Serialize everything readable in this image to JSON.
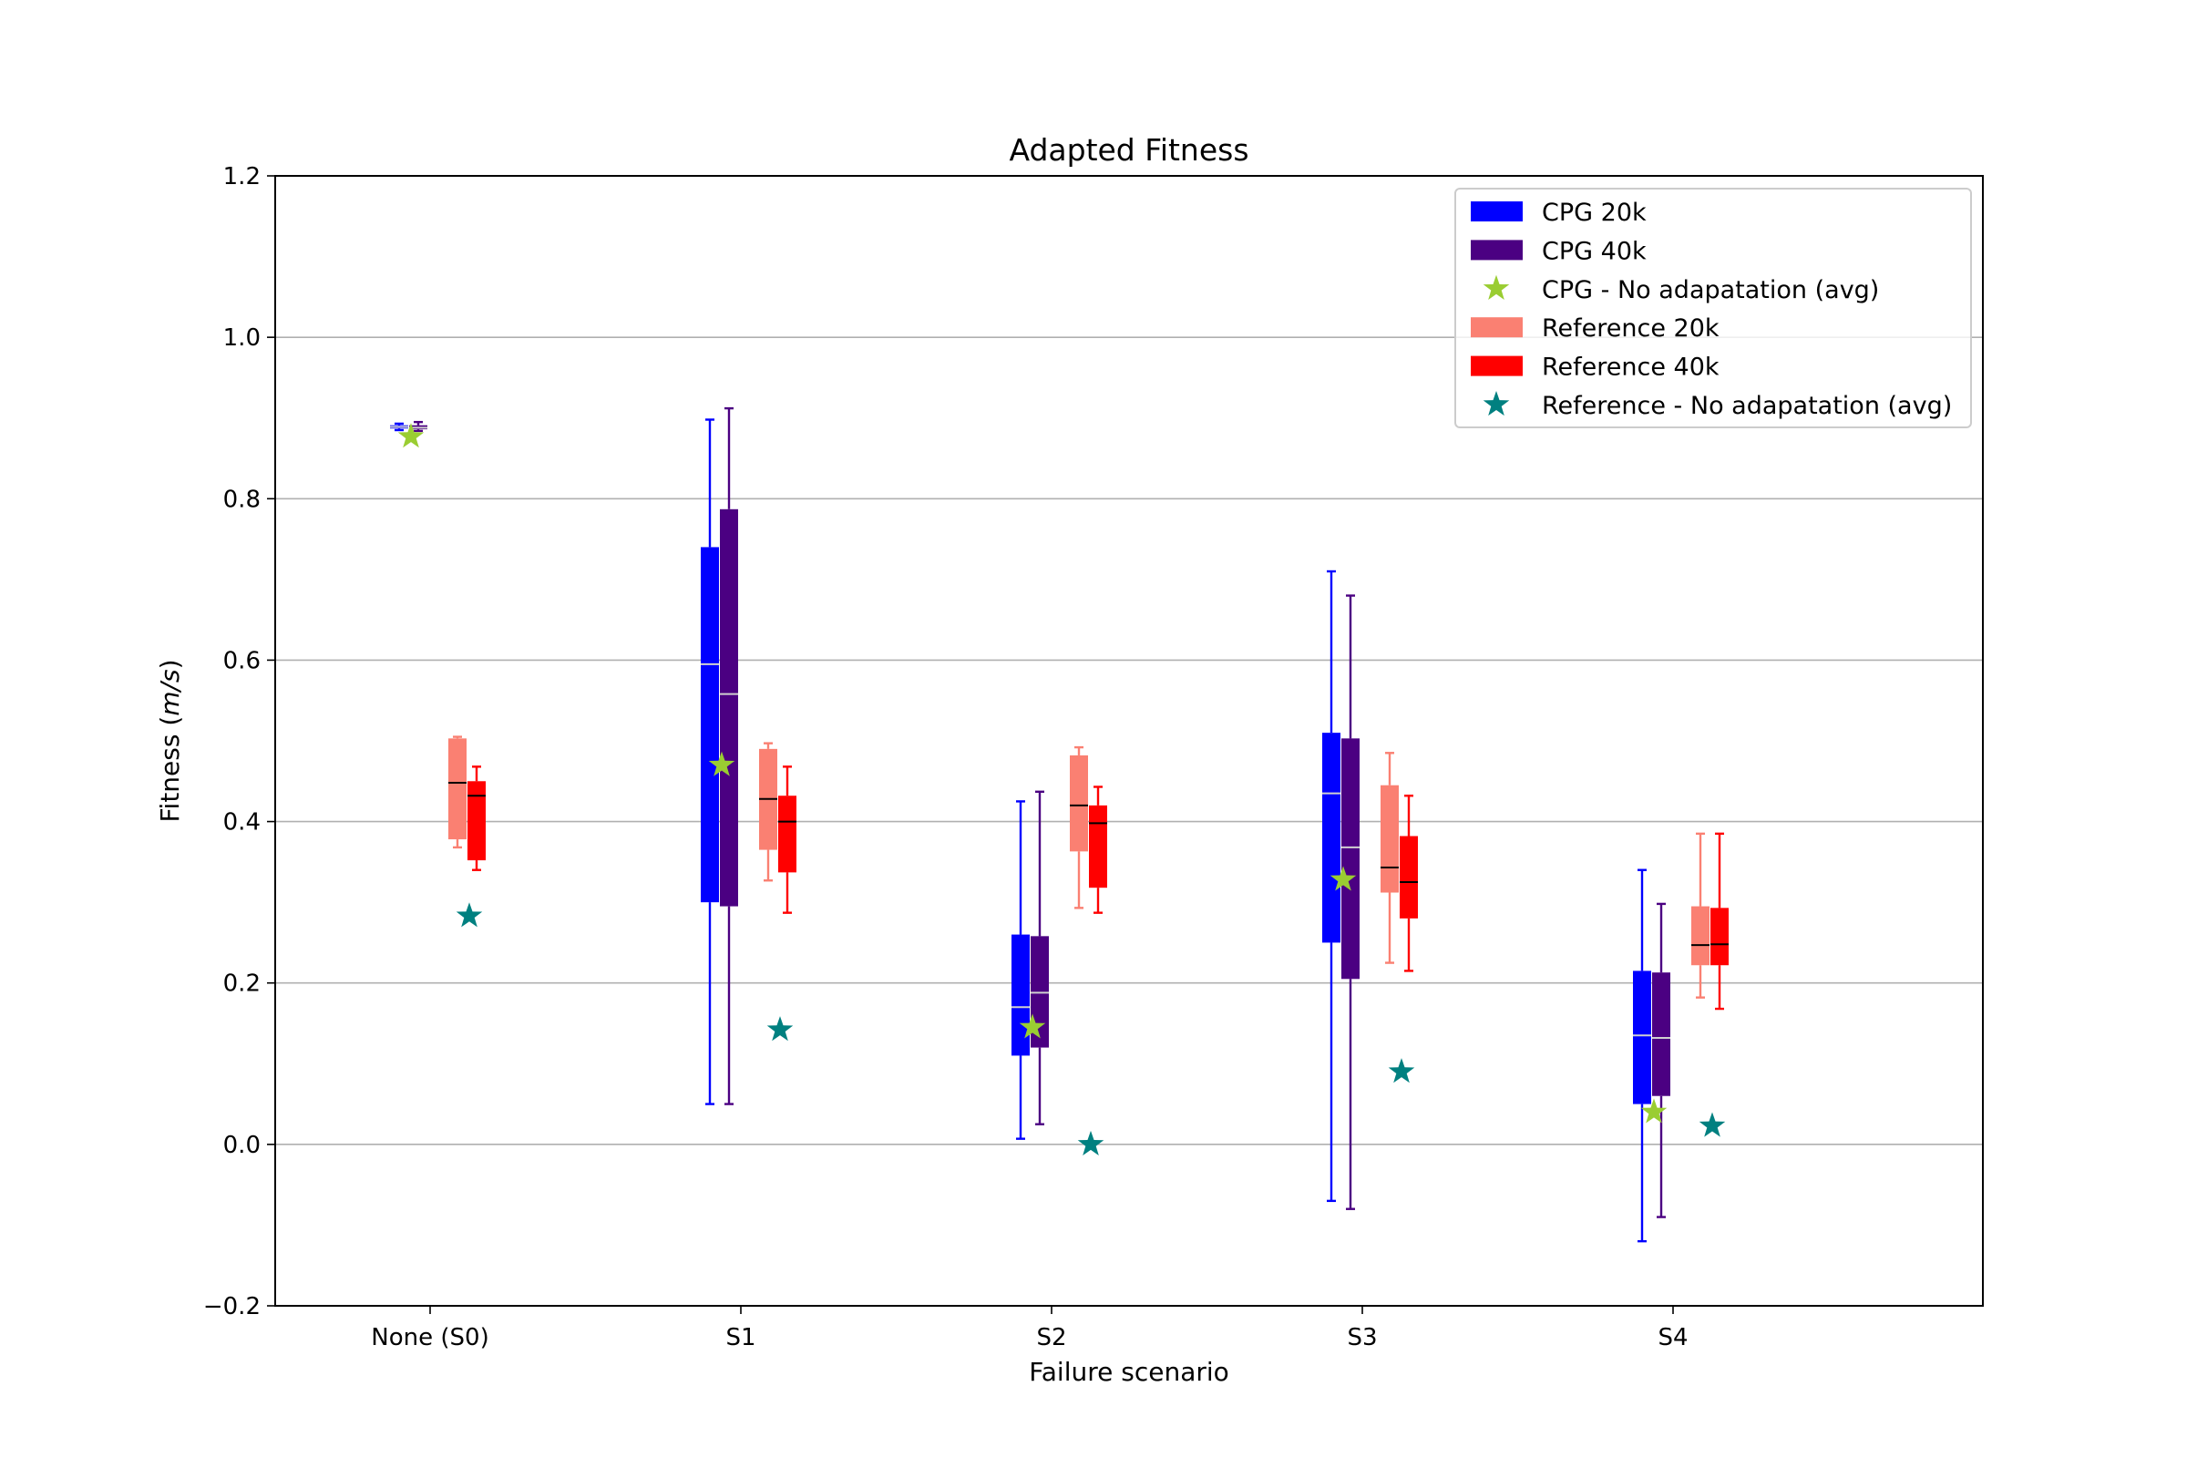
{
  "chart_data": {
    "type": "box",
    "title": "Adapted Fitness",
    "xlabel": "Failure scenario",
    "ylabel_prefix": "Fitness (",
    "ylabel_unit": "m/s",
    "ylabel_suffix": ")",
    "ylim": [
      -0.2,
      1.2
    ],
    "yticks": [
      "−0.2",
      "0.0",
      "0.2",
      "0.4",
      "0.6",
      "0.8",
      "1.0",
      "1.2"
    ],
    "ytick_values": [
      -0.2,
      0.0,
      0.2,
      0.4,
      0.6,
      0.8,
      1.0,
      1.2
    ],
    "grid": "horizontal",
    "legend_position": "top-right",
    "categories": [
      "None (S0)",
      "S1",
      "S2",
      "S3",
      "S4"
    ],
    "series": [
      {
        "name": "CPG 20k",
        "kind": "box",
        "color": "#0000ff",
        "median_color": "#d0d0d0",
        "boxes": [
          {
            "whislo": 0.885,
            "q1": 0.887,
            "med": 0.889,
            "q3": 0.891,
            "whishi": 0.893
          },
          {
            "whislo": 0.05,
            "q1": 0.3,
            "med": 0.595,
            "q3": 0.74,
            "whishi": 0.898
          },
          {
            "whislo": 0.007,
            "q1": 0.11,
            "med": 0.17,
            "q3": 0.26,
            "whishi": 0.425
          },
          {
            "whislo": -0.07,
            "q1": 0.25,
            "med": 0.435,
            "q3": 0.51,
            "whishi": 0.71
          },
          {
            "whislo": -0.12,
            "q1": 0.05,
            "med": 0.135,
            "q3": 0.215,
            "whishi": 0.34
          }
        ]
      },
      {
        "name": "CPG 40k",
        "kind": "box",
        "color": "#4b0082",
        "median_color": "#d0d0d0",
        "boxes": [
          {
            "whislo": 0.884,
            "q1": 0.886,
            "med": 0.888,
            "q3": 0.891,
            "whishi": 0.895
          },
          {
            "whislo": 0.05,
            "q1": 0.295,
            "med": 0.558,
            "q3": 0.787,
            "whishi": 0.912
          },
          {
            "whislo": 0.025,
            "q1": 0.12,
            "med": 0.188,
            "q3": 0.258,
            "whishi": 0.437
          },
          {
            "whislo": -0.08,
            "q1": 0.205,
            "med": 0.368,
            "q3": 0.503,
            "whishi": 0.68
          },
          {
            "whislo": -0.09,
            "q1": 0.06,
            "med": 0.132,
            "q3": 0.213,
            "whishi": 0.298
          }
        ]
      },
      {
        "name": "CPG - No adapatation (avg)",
        "kind": "point",
        "color": "#9acd32",
        "values": [
          0.877,
          0.47,
          0.145,
          0.328,
          0.04
        ]
      },
      {
        "name": "Reference 20k",
        "kind": "box",
        "color": "#fa8072",
        "median_color": "#000000",
        "boxes": [
          {
            "whislo": 0.368,
            "q1": 0.378,
            "med": 0.448,
            "q3": 0.503,
            "whishi": 0.505
          },
          {
            "whislo": 0.327,
            "q1": 0.365,
            "med": 0.428,
            "q3": 0.49,
            "whishi": 0.497
          },
          {
            "whislo": 0.293,
            "q1": 0.363,
            "med": 0.42,
            "q3": 0.482,
            "whishi": 0.492
          },
          {
            "whislo": 0.225,
            "q1": 0.312,
            "med": 0.343,
            "q3": 0.445,
            "whishi": 0.485
          },
          {
            "whislo": 0.182,
            "q1": 0.222,
            "med": 0.247,
            "q3": 0.295,
            "whishi": 0.385
          }
        ]
      },
      {
        "name": "Reference 40k",
        "kind": "box",
        "color": "#ff0000",
        "median_color": "#000000",
        "boxes": [
          {
            "whislo": 0.34,
            "q1": 0.352,
            "med": 0.432,
            "q3": 0.45,
            "whishi": 0.468
          },
          {
            "whislo": 0.287,
            "q1": 0.337,
            "med": 0.4,
            "q3": 0.432,
            "whishi": 0.468
          },
          {
            "whislo": 0.287,
            "q1": 0.318,
            "med": 0.398,
            "q3": 0.42,
            "whishi": 0.443
          },
          {
            "whislo": 0.215,
            "q1": 0.28,
            "med": 0.325,
            "q3": 0.382,
            "whishi": 0.432
          },
          {
            "whislo": 0.168,
            "q1": 0.222,
            "med": 0.248,
            "q3": 0.293,
            "whishi": 0.385
          }
        ]
      },
      {
        "name": "Reference - No adapatation (avg)",
        "kind": "point",
        "color": "#008080",
        "values": [
          0.283,
          0.142,
          0.0,
          0.09,
          0.023
        ]
      }
    ]
  }
}
